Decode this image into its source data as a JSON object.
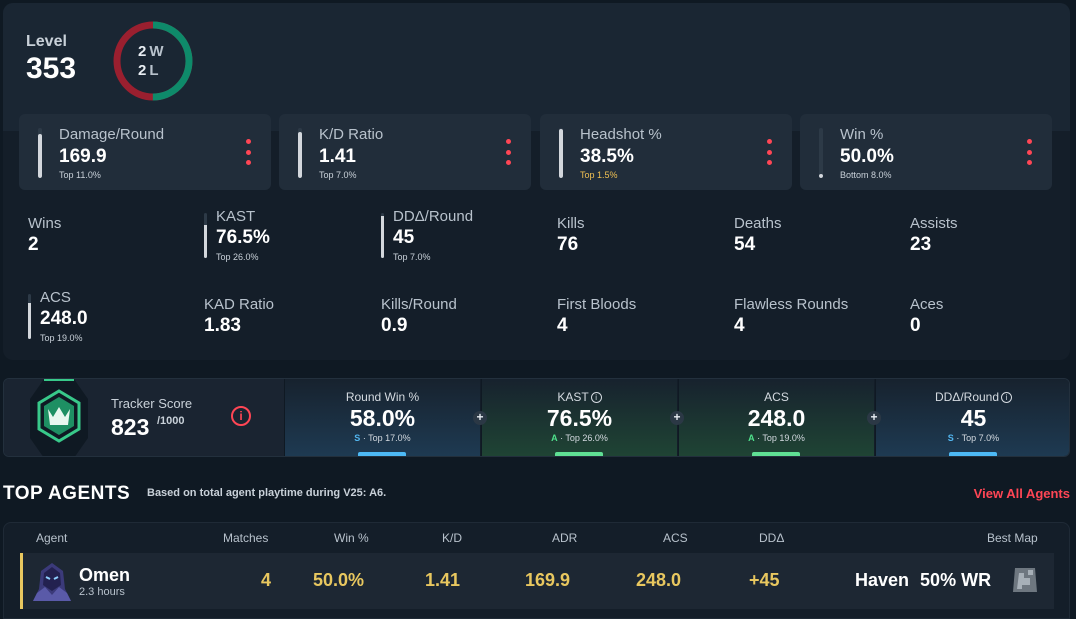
{
  "overview": {
    "level_label": "Level",
    "level_value": "353",
    "wins": "2",
    "win_unit": "W",
    "losses": "2",
    "loss_unit": "L",
    "win_fraction": 0.5,
    "colors": {
      "win": "#0e8a6a",
      "loss": "#9a1f2f"
    },
    "cards": [
      {
        "label": "Damage/Round",
        "value": "169.9",
        "rank": "Top 11.0%",
        "fill": 0.89,
        "rank_color": "#c9d1d9"
      },
      {
        "label": "K/D Ratio",
        "value": "1.41",
        "rank": "Top 7.0%",
        "fill": 0.93,
        "rank_color": "#c9d1d9"
      },
      {
        "label": "Headshot %",
        "value": "38.5%",
        "rank": "Top 1.5%",
        "fill": 0.98,
        "rank_color": "#f0c052"
      },
      {
        "label": "Win %",
        "value": "50.0%",
        "rank": "Bottom 8.0%",
        "fill": 0.08,
        "rank_color": "#c9d1d9"
      }
    ],
    "stats": [
      {
        "label": "Wins",
        "value": "2"
      },
      {
        "label": "KAST",
        "value": "76.5%",
        "rank": "Top 26.0%",
        "fill": 0.74
      },
      {
        "label": "DDΔ/Round",
        "value": "45",
        "rank": "Top 7.0%",
        "fill": 0.93
      },
      {
        "label": "Kills",
        "value": "76"
      },
      {
        "label": "Deaths",
        "value": "54"
      },
      {
        "label": "Assists",
        "value": "23"
      },
      {
        "label": "ACS",
        "value": "248.0",
        "rank": "Top 19.0%",
        "fill": 0.81
      },
      {
        "label": "KAD Ratio",
        "value": "1.83"
      },
      {
        "label": "Kills/Round",
        "value": "0.9"
      },
      {
        "label": "First Bloods",
        "value": "4"
      },
      {
        "label": "Flawless Rounds",
        "value": "4"
      },
      {
        "label": "Aces",
        "value": "0"
      }
    ]
  },
  "tracker": {
    "label": "Tracker Score",
    "score": "823",
    "max": "/1000",
    "info_icon": "info-icon",
    "cells": [
      {
        "label": "Round Win %",
        "value": "58.0%",
        "grade": "S",
        "rank": " · Top 17.0%"
      },
      {
        "label": "KAST",
        "value": "76.5%",
        "grade": "A",
        "rank": " · Top 26.0%"
      },
      {
        "label": "ACS",
        "value": "248.0",
        "grade": "A",
        "rank": " · Top 19.0%"
      },
      {
        "label": "DDΔ/Round",
        "value": "45",
        "grade": "S",
        "rank": " · Top 7.0%"
      }
    ],
    "info_glyph": "i",
    "plus_glyph": "+"
  },
  "top_agents": {
    "title": "TOP AGENTS",
    "subtitle": "Based on total agent playtime during V25: A6.",
    "view_all": "View All Agents",
    "headers": {
      "agent": "Agent",
      "matches": "Matches",
      "win": "Win %",
      "kd": "K/D",
      "adr": "ADR",
      "acs": "ACS",
      "dd": "DDΔ",
      "best_map": "Best Map"
    },
    "rows": [
      {
        "name": "Omen",
        "hours": "2.3 hours",
        "matches": "4",
        "win": "50.0%",
        "kd": "1.41",
        "adr": "169.9",
        "acs": "248.0",
        "dd": "+45",
        "best_map": "Haven",
        "best_map_wr": "50% WR"
      }
    ]
  }
}
